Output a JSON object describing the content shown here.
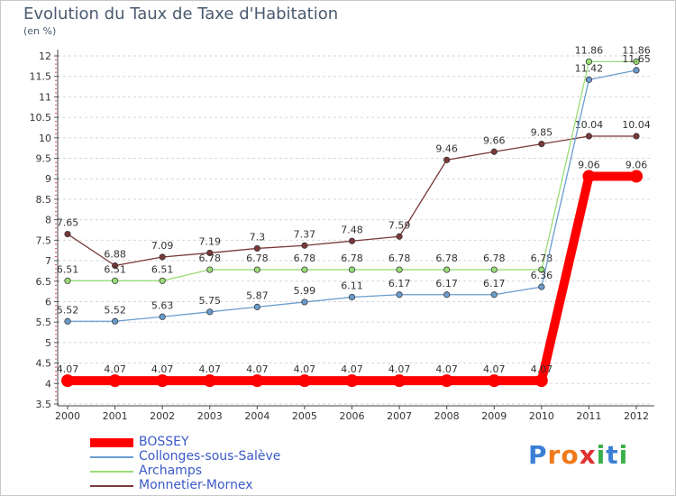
{
  "title": "Evolution du Taux de Taxe d'Habitation",
  "subtitle": "(en %)",
  "logo": {
    "letters": [
      "P",
      "r",
      "o",
      "x",
      "i",
      "t",
      "i"
    ],
    "colors": [
      "#3a7fd5",
      "#f07a1a",
      "#f07a1a",
      "#e03030",
      "#3ab04a",
      "#3a7fd5",
      "#3ab04a"
    ]
  },
  "chart_data": {
    "type": "line",
    "x": [
      "2000",
      "2001",
      "2002",
      "2003",
      "2004",
      "2005",
      "2006",
      "2007",
      "2008",
      "2009",
      "2010",
      "2011",
      "2012"
    ],
    "ylim": [
      3.5,
      12
    ],
    "yticks": [
      "3.5",
      "4",
      "4.5",
      "5",
      "5.5",
      "6",
      "6.5",
      "7",
      "7.5",
      "8",
      "8.5",
      "9",
      "9.5",
      "10",
      "10.5",
      "11",
      "11.5",
      "12"
    ],
    "grid": "dashed horizontal",
    "legend": "bottom",
    "series": [
      {
        "name": "BOSSEY",
        "color": "#ff0000",
        "values": [
          4.07,
          4.07,
          4.07,
          4.07,
          4.07,
          4.07,
          4.07,
          4.07,
          4.07,
          4.07,
          4.07,
          9.06,
          9.06
        ],
        "labels": [
          "4.07",
          "4.07",
          "4.07",
          "4.07",
          "4.07",
          "4.07",
          "4.07",
          "4.07",
          "4.07",
          "4.07",
          "4.07",
          "9.06",
          "9.06"
        ]
      },
      {
        "name": "Collonges-sous-Salève",
        "color": "#6a9ccf",
        "values": [
          5.52,
          5.52,
          5.63,
          5.75,
          5.87,
          5.99,
          6.11,
          6.17,
          6.17,
          6.17,
          6.36,
          11.42,
          11.65
        ],
        "labels": [
          "5.52",
          "5.52",
          "5.63",
          "5.75",
          "5.87",
          "5.99",
          "6.11",
          "6.17",
          "6.17",
          "6.17",
          "6.36",
          "11.42",
          "11.65"
        ]
      },
      {
        "name": "Archamps",
        "color": "#99dd77",
        "values": [
          6.51,
          6.51,
          6.51,
          6.78,
          6.78,
          6.78,
          6.78,
          6.78,
          6.78,
          6.78,
          6.78,
          11.86,
          11.86
        ],
        "labels": [
          "6.51",
          "6.51",
          "6.51",
          "6.78",
          "6.78",
          "6.78",
          "6.78",
          "6.78",
          "6.78",
          "6.78",
          "6.78",
          "11.86",
          "11.86"
        ]
      },
      {
        "name": "Monnetier-Mornex",
        "color": "#7a3838",
        "values": [
          7.65,
          6.88,
          7.09,
          7.19,
          7.3,
          7.37,
          7.48,
          7.59,
          9.46,
          9.66,
          9.85,
          10.04,
          10.04
        ],
        "labels": [
          "7.65",
          "6.88",
          "7.09",
          "7.19",
          "7.3",
          "7.37",
          "7.48",
          "7.59",
          "9.46",
          "9.66",
          "9.85",
          "10.04",
          "10.04"
        ]
      }
    ]
  }
}
